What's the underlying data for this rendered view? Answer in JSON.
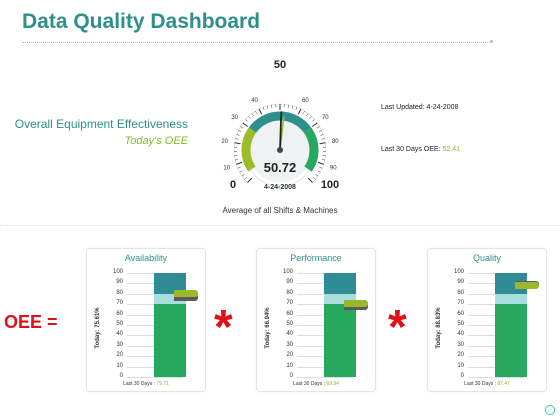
{
  "title": "Data Quality Dashboard",
  "left": {
    "heading": "Overall Equipment Effectiveness",
    "subheading": "Today's OEE"
  },
  "gauge": {
    "value": 50.72,
    "value_text": "50.72",
    "min": 0,
    "max": 100,
    "min_label": "0",
    "mid_label": "50",
    "max_label": "100",
    "ticks": [
      "10",
      "20",
      "30",
      "40",
      "60",
      "70",
      "80",
      "90"
    ],
    "date": "4-24-2008",
    "caption": "Average of all Shifts & Machines"
  },
  "info": {
    "last_updated_label": "Last Updated:",
    "last_updated": "4-24-2008",
    "last30_label": "Last 30 Days OEE:",
    "last30": "52.41"
  },
  "oee_label": "OEE =",
  "operator": "*",
  "colors": {
    "teal": "#2e8f8c",
    "green": "#26a85f",
    "olive": "#9ab82a",
    "red": "#e0101b"
  },
  "axis_ticks": [
    "100",
    "90",
    "80",
    "70",
    "60",
    "50",
    "40",
    "30",
    "20",
    "10",
    "0"
  ],
  "panels": [
    {
      "name": "Availability",
      "today_label": "Today: 75.61%",
      "today": 75.61,
      "last30_label": "Last 30 Days :",
      "last30": "79.71",
      "last30_value": 79.71
    },
    {
      "name": "Performance",
      "today_label": "Today: 66.94%",
      "today": 66.94,
      "last30_label": "Last 30 Days :",
      "last30": "69.94",
      "last30_value": 69.94
    },
    {
      "name": "Quality",
      "today_label": "Today: 88.83%",
      "today": 88.83,
      "last30_label": "Last 30 Days :",
      "last30": "87.47",
      "last30_value": 87.47
    }
  ]
}
